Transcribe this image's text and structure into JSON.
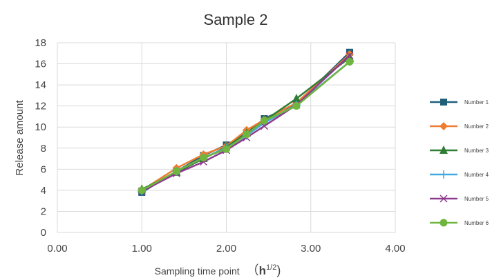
{
  "chart_data": {
    "type": "line",
    "title": "Sample 2",
    "xlabel": "Sampling time point",
    "xlabel_unit_base": "h",
    "xlabel_unit_sup": "1/2",
    "ylabel": "Release amount",
    "xlim": [
      0,
      4
    ],
    "ylim": [
      0,
      18
    ],
    "xticks": [
      "0.00",
      "1.00",
      "2.00",
      "3.00",
      "4.00"
    ],
    "yticks": [
      "0",
      "2",
      "4",
      "6",
      "8",
      "10",
      "12",
      "14",
      "16",
      "18"
    ],
    "grid": true,
    "legend_position": "right",
    "x": [
      1.0,
      1.41,
      1.73,
      2.0,
      2.24,
      2.45,
      2.83,
      3.46
    ],
    "series": [
      {
        "name": "Number 1",
        "color": "#1f5f7a",
        "marker": "square",
        "values": [
          3.8,
          5.8,
          7.3,
          8.3,
          9.4,
          10.8,
          12.2,
          17.1
        ]
      },
      {
        "name": "Number 2",
        "color": "#ed7d31",
        "marker": "diamond",
        "values": [
          4.0,
          6.1,
          7.4,
          8.2,
          9.7,
          10.7,
          12.3,
          16.9
        ]
      },
      {
        "name": "Number 3",
        "color": "#2e7d32",
        "marker": "triangle",
        "values": [
          4.1,
          5.7,
          7.0,
          8.1,
          9.4,
          10.6,
          12.7,
          16.6
        ]
      },
      {
        "name": "Number 4",
        "color": "#3fa9e0",
        "marker": "plus",
        "values": [
          3.9,
          5.8,
          7.1,
          8.0,
          9.2,
          10.4,
          12.1,
          16.2
        ]
      },
      {
        "name": "Number 5",
        "color": "#8e3a8e",
        "marker": "x",
        "values": [
          3.9,
          5.6,
          6.7,
          7.8,
          9.0,
          10.1,
          12.1,
          16.8
        ]
      },
      {
        "name": "Number 6",
        "color": "#70b53f",
        "marker": "circle",
        "values": [
          4.0,
          5.8,
          7.1,
          7.9,
          9.3,
          10.6,
          12.0,
          16.2
        ]
      }
    ]
  }
}
